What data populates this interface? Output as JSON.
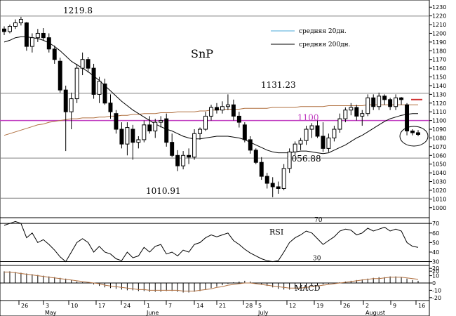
{
  "chart_data": [
    {
      "type": "candlestick",
      "panel": "price",
      "title": "SnP",
      "x_ticks": [
        "26",
        "3",
        "10",
        "17",
        "24",
        "1",
        "7",
        "14",
        "21",
        "28",
        "5",
        "12",
        "19",
        "26",
        "2",
        "9",
        "16"
      ],
      "month_labels": [
        "May",
        "June",
        "July",
        "August"
      ],
      "y_ticks": [
        1000,
        1010,
        1020,
        1030,
        1040,
        1050,
        1060,
        1070,
        1080,
        1090,
        1100,
        1110,
        1120,
        1130,
        1140,
        1150,
        1160,
        1170,
        1180,
        1190,
        1200,
        1210,
        1220,
        1230
      ],
      "ylim": [
        995,
        1235
      ],
      "horizontal_levels": [
        1219.8,
        1131.23,
        1100,
        1056.88,
        1010.91
      ],
      "level_labels": [
        "1219.8",
        "1131.23",
        "1100",
        "1056.88",
        "1010.91"
      ],
      "legend": [
        {
          "label": "средняя 20дн.",
          "color": "#4aa8d8"
        },
        {
          "label": "средняя 200дн.",
          "color": "#000000"
        }
      ],
      "candles": [
        [
          1205,
          1208,
          1198,
          1202
        ],
        [
          1202,
          1210,
          1200,
          1208
        ],
        [
          1208,
          1216,
          1205,
          1212
        ],
        [
          1212,
          1219,
          1209,
          1216
        ],
        [
          1212,
          1213,
          1180,
          1185
        ],
        [
          1185,
          1200,
          1178,
          1195
        ],
        [
          1195,
          1205,
          1190,
          1200
        ],
        [
          1200,
          1206,
          1192,
          1195
        ],
        [
          1195,
          1200,
          1178,
          1182
        ],
        [
          1182,
          1186,
          1165,
          1170
        ],
        [
          1168,
          1172,
          1132,
          1135
        ],
        [
          1135,
          1140,
          1065,
          1110
        ],
        [
          1110,
          1132,
          1090,
          1125
        ],
        [
          1125,
          1165,
          1120,
          1160
        ],
        [
          1160,
          1178,
          1152,
          1170
        ],
        [
          1170,
          1173,
          1155,
          1160
        ],
        [
          1160,
          1165,
          1125,
          1130
        ],
        [
          1130,
          1150,
          1120,
          1145
        ],
        [
          1142,
          1148,
          1118,
          1120
        ],
        [
          1120,
          1130,
          1102,
          1110
        ],
        [
          1108,
          1112,
          1085,
          1090
        ],
        [
          1090,
          1098,
          1068,
          1073
        ],
        [
          1073,
          1098,
          1060,
          1092
        ],
        [
          1090,
          1095,
          1055,
          1075
        ],
        [
          1075,
          1082,
          1068,
          1078
        ],
        [
          1078,
          1100,
          1075,
          1095
        ],
        [
          1095,
          1105,
          1085,
          1088
        ],
        [
          1088,
          1102,
          1080,
          1098
        ],
        [
          1098,
          1105,
          1092,
          1100
        ],
        [
          1102,
          1108,
          1070,
          1075
        ],
        [
          1075,
          1085,
          1058,
          1060
        ],
        [
          1060,
          1066,
          1042,
          1048
        ],
        [
          1048,
          1065,
          1044,
          1060
        ],
        [
          1060,
          1068,
          1050,
          1058
        ],
        [
          1058,
          1090,
          1055,
          1085
        ],
        [
          1085,
          1092,
          1078,
          1090
        ],
        [
          1090,
          1110,
          1088,
          1105
        ],
        [
          1105,
          1118,
          1100,
          1115
        ],
        [
          1115,
          1120,
          1108,
          1112
        ],
        [
          1112,
          1122,
          1108,
          1116
        ],
        [
          1116,
          1130,
          1112,
          1118
        ],
        [
          1118,
          1124,
          1100,
          1105
        ],
        [
          1105,
          1110,
          1092,
          1098
        ],
        [
          1095,
          1098,
          1075,
          1078
        ],
        [
          1078,
          1082,
          1062,
          1066
        ],
        [
          1066,
          1068,
          1050,
          1052
        ],
        [
          1052,
          1058,
          1032,
          1036
        ],
        [
          1036,
          1040,
          1022,
          1028
        ],
        [
          1028,
          1035,
          1012,
          1024
        ],
        [
          1024,
          1030,
          1016,
          1022
        ],
        [
          1022,
          1050,
          1020,
          1045
        ],
        [
          1045,
          1068,
          1040,
          1064
        ],
        [
          1064,
          1076,
          1060,
          1073
        ],
        [
          1073,
          1080,
          1066,
          1077
        ],
        [
          1077,
          1094,
          1072,
          1090
        ],
        [
          1090,
          1097,
          1080,
          1094
        ],
        [
          1094,
          1100,
          1080,
          1082
        ],
        [
          1082,
          1098,
          1064,
          1068
        ],
        [
          1068,
          1085,
          1064,
          1080
        ],
        [
          1080,
          1094,
          1076,
          1090
        ],
        [
          1090,
          1108,
          1086,
          1102
        ],
        [
          1102,
          1115,
          1098,
          1112
        ],
        [
          1112,
          1120,
          1106,
          1115
        ],
        [
          1115,
          1118,
          1100,
          1105
        ],
        [
          1105,
          1112,
          1094,
          1108
        ],
        [
          1108,
          1130,
          1105,
          1126
        ],
        [
          1126,
          1130,
          1112,
          1116
        ],
        [
          1116,
          1132,
          1112,
          1128
        ],
        [
          1128,
          1130,
          1118,
          1124
        ],
        [
          1124,
          1126,
          1112,
          1116
        ],
        [
          1116,
          1130,
          1112,
          1126
        ],
        [
          1126,
          1127,
          1118,
          1124
        ],
        [
          1118,
          1120,
          1083,
          1088
        ],
        [
          1088,
          1090,
          1083,
          1086
        ],
        [
          1086,
          1089,
          1082,
          1084
        ]
      ],
      "sma_20": [
        1190,
        1192,
        1195,
        1196,
        1196,
        1195,
        1194,
        1192,
        1189,
        1185,
        1180,
        1174,
        1168,
        1164,
        1160,
        1156,
        1151,
        1146,
        1140,
        1134,
        1128,
        1122,
        1117,
        1112,
        1108,
        1104,
        1100,
        1096,
        1093,
        1090,
        1088,
        1085,
        1082,
        1080,
        1079,
        1079,
        1080,
        1081,
        1082,
        1082,
        1082,
        1081,
        1080,
        1078,
        1075,
        1072,
        1069,
        1066,
        1064,
        1063,
        1063,
        1063,
        1064,
        1065,
        1065,
        1064,
        1063,
        1062,
        1063,
        1066,
        1069,
        1072,
        1076,
        1080,
        1083,
        1087,
        1091,
        1095,
        1099,
        1102,
        1104,
        1106,
        1107,
        1108,
        1108
      ],
      "sma_200": [
        1083,
        1085,
        1087,
        1089,
        1091,
        1093,
        1095,
        1096,
        1098,
        1099,
        1100,
        1101,
        1102,
        1102,
        1103,
        1103,
        1103,
        1104,
        1104,
        1105,
        1105,
        1106,
        1106,
        1107,
        1107,
        1108,
        1108,
        1108,
        1109,
        1109,
        1109,
        1110,
        1110,
        1110,
        1110,
        1111,
        1111,
        1112,
        1112,
        1113,
        1113,
        1113,
        1113,
        1114,
        1114,
        1114,
        1114,
        1114,
        1115,
        1115,
        1115,
        1115,
        1115,
        1116,
        1116,
        1116,
        1116,
        1116,
        1117,
        1117,
        1117,
        1117,
        1117,
        1117,
        1117,
        1118,
        1118,
        1118,
        1118,
        1118,
        1118,
        1118,
        1118,
        1118,
        1118
      ],
      "line_colors": {
        "sma_20": "#000000",
        "sma_200": "#b07040",
        "level": "#808080",
        "level_1100": "#c03cc0"
      }
    },
    {
      "type": "line",
      "panel": "rsi",
      "series_label": "RSI",
      "y_ticks": [
        20,
        30,
        40,
        50,
        60,
        70
      ],
      "ylim": [
        26,
        76
      ],
      "levels": [
        70,
        30
      ],
      "level_labels": [
        "70",
        "30"
      ],
      "values": [
        68,
        70,
        72,
        70,
        55,
        60,
        50,
        53,
        48,
        42,
        35,
        30,
        40,
        50,
        54,
        50,
        40,
        46,
        40,
        38,
        33,
        31,
        40,
        34,
        36,
        45,
        40,
        46,
        48,
        38,
        40,
        36,
        42,
        40,
        48,
        50,
        55,
        58,
        56,
        58,
        60,
        52,
        48,
        43,
        39,
        36,
        33,
        31,
        30,
        31,
        40,
        50,
        55,
        58,
        62,
        60,
        54,
        48,
        52,
        56,
        62,
        64,
        63,
        58,
        60,
        65,
        62,
        64,
        66,
        62,
        64,
        62,
        50,
        46,
        45
      ]
    },
    {
      "type": "bar",
      "panel": "macd",
      "series_label": "MACD",
      "y_ticks": [
        -20,
        -10,
        0,
        10,
        20
      ],
      "ylim": [
        -24,
        24
      ],
      "signal_color": "#b07040",
      "histogram": [
        16,
        16,
        15,
        14,
        13,
        12,
        11,
        10,
        9,
        8,
        7,
        6,
        4,
        2,
        1,
        0,
        -2,
        -4,
        -6,
        -7,
        -8,
        -9,
        -10,
        -10,
        -11,
        -11,
        -12,
        -12,
        -12,
        -11,
        -11,
        -12,
        -13,
        -13,
        -12,
        -11,
        -9,
        -7,
        -5,
        -3,
        -1,
        1,
        2,
        3,
        2,
        0,
        -2,
        -4,
        -6,
        -8,
        -9,
        -9,
        -8,
        -7,
        -6,
        -4,
        -3,
        -2,
        -1,
        0,
        1,
        2,
        3,
        4,
        5,
        6,
        7,
        8,
        8,
        9,
        9,
        8,
        6,
        4,
        3
      ],
      "signal": [
        15,
        15,
        14,
        13,
        12,
        11,
        10,
        9,
        8,
        7,
        6,
        5,
        4,
        3,
        2,
        1,
        0,
        -1,
        -3,
        -4,
        -5,
        -6,
        -7,
        -8,
        -9,
        -9,
        -10,
        -10,
        -10,
        -10,
        -10,
        -10,
        -11,
        -11,
        -11,
        -10,
        -9,
        -8,
        -6,
        -5,
        -3,
        -2,
        -1,
        0,
        0,
        -1,
        -2,
        -3,
        -4,
        -5,
        -6,
        -7,
        -7,
        -7,
        -6,
        -5,
        -4,
        -3,
        -2,
        -1,
        0,
        1,
        2,
        3,
        4,
        5,
        6,
        6,
        7,
        8,
        8,
        8,
        7,
        6,
        5
      ]
    }
  ]
}
